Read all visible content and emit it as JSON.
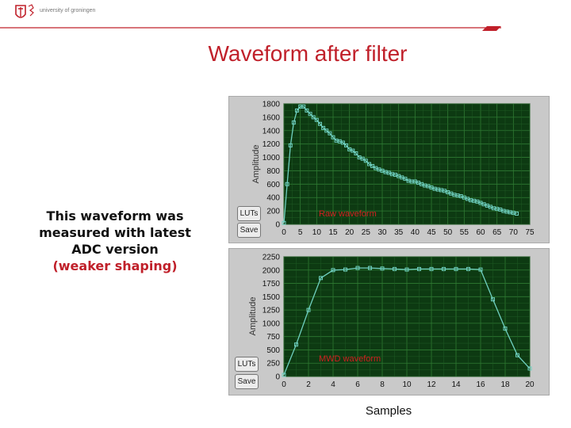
{
  "header": {
    "logo_text": "university of groningen",
    "accent_color": "#c0202a"
  },
  "slide": {
    "title": "Waveform after filter",
    "note_line1": "This waveform was",
    "note_line2": "measured with latest",
    "note_line3": "ADC version",
    "note_line4": "(weaker shaping)",
    "x_caption": "Samples"
  },
  "buttons": {
    "luts": "LUTs",
    "save": "Save"
  },
  "chart_data": [
    {
      "type": "line",
      "title": "Raw waveform",
      "ylabel": "Amplitude",
      "xlabel": "",
      "xlim": [
        0,
        75
      ],
      "ylim": [
        0,
        1800
      ],
      "xticks": [
        "0",
        "5",
        "10",
        "15",
        "20",
        "25",
        "30",
        "35",
        "40",
        "45",
        "50",
        "55",
        "60",
        "65",
        "70",
        "75"
      ],
      "yticks": [
        "0",
        "200",
        "400",
        "600",
        "800",
        "1000",
        "1200",
        "1400",
        "1600",
        "1800"
      ],
      "grid": true,
      "line_color": "#6fd0c0",
      "background": "#0d3a12",
      "x": [
        0,
        1,
        2,
        3,
        4,
        5,
        6,
        7,
        8,
        9,
        10,
        11,
        12,
        13,
        14,
        15,
        16,
        17,
        18,
        19,
        20,
        21,
        22,
        23,
        24,
        25,
        26,
        27,
        28,
        29,
        30,
        31,
        32,
        33,
        34,
        35,
        36,
        37,
        38,
        39,
        40,
        41,
        42,
        43,
        44,
        45,
        46,
        47,
        48,
        49,
        50,
        51,
        52,
        53,
        54,
        55,
        56,
        57,
        58,
        59,
        60,
        61,
        62,
        63,
        64,
        65,
        66,
        67,
        68,
        69,
        70,
        71
      ],
      "y": [
        20,
        600,
        1180,
        1520,
        1700,
        1760,
        1760,
        1700,
        1650,
        1600,
        1560,
        1500,
        1440,
        1400,
        1360,
        1300,
        1250,
        1240,
        1220,
        1180,
        1120,
        1100,
        1060,
        1000,
        980,
        950,
        900,
        870,
        840,
        820,
        800,
        780,
        770,
        750,
        740,
        720,
        700,
        680,
        650,
        640,
        640,
        620,
        600,
        580,
        570,
        550,
        530,
        520,
        510,
        500,
        480,
        460,
        440,
        430,
        420,
        400,
        380,
        360,
        350,
        340,
        320,
        300,
        280,
        260,
        240,
        230,
        220,
        200,
        190,
        180,
        170,
        160
      ]
    },
    {
      "type": "line",
      "title": "MWD waveform",
      "ylabel": "Amplitude",
      "xlabel": "Samples",
      "xlim": [
        0,
        20
      ],
      "ylim": [
        0,
        2250
      ],
      "xticks": [
        "0",
        "2",
        "4",
        "6",
        "8",
        "10",
        "12",
        "14",
        "16",
        "18",
        "20"
      ],
      "yticks": [
        "0",
        "250",
        "500",
        "750",
        "1000",
        "1250",
        "1500",
        "1750",
        "2000",
        "2250"
      ],
      "grid": true,
      "line_color": "#6fd0c0",
      "background": "#0d3a12",
      "x": [
        0,
        1,
        2,
        3,
        4,
        5,
        6,
        7,
        8,
        9,
        10,
        11,
        12,
        13,
        14,
        15,
        16,
        17,
        18,
        19,
        20
      ],
      "y": [
        30,
        600,
        1250,
        1850,
        2000,
        2010,
        2040,
        2040,
        2030,
        2020,
        2010,
        2020,
        2020,
        2020,
        2020,
        2020,
        2010,
        1450,
        900,
        400,
        150
      ]
    }
  ]
}
